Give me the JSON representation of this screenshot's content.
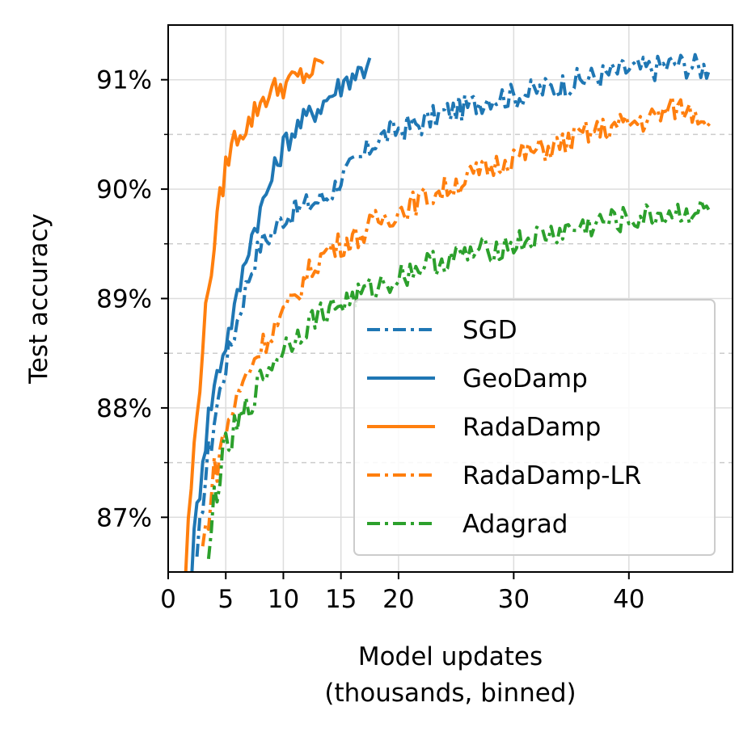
{
  "chart_data": {
    "type": "line",
    "title": "",
    "xlabel": [
      "Model updates",
      "(thousands, binned)"
    ],
    "ylabel": "Test accuracy",
    "xlim": [
      0,
      49
    ],
    "ylim": [
      86.5,
      91.5
    ],
    "xticks": [
      0,
      5,
      10,
      15,
      20,
      30,
      40
    ],
    "xtick_labels": [
      "0",
      "5",
      "10",
      "15",
      "20",
      "30",
      "40"
    ],
    "yticks": [
      87,
      88,
      89,
      90,
      91
    ],
    "ytick_labels": [
      "87%",
      "88%",
      "89%",
      "90%",
      "91%"
    ],
    "ygrid_minor_dashed": [
      87.5,
      88.5,
      89.5,
      90.5
    ],
    "grid": true,
    "legend": "lower-right",
    "series": [
      {
        "name": "SGD",
        "color": "#1f77b4",
        "style": "dashdot",
        "points": [
          [
            2.5,
            86.5
          ],
          [
            3,
            87.2
          ],
          [
            4,
            87.9
          ],
          [
            5,
            88.4
          ],
          [
            6,
            88.8
          ],
          [
            7,
            89.2
          ],
          [
            8,
            89.5
          ],
          [
            9,
            89.6
          ],
          [
            10,
            89.75
          ],
          [
            11,
            89.8
          ],
          [
            12,
            89.85
          ],
          [
            13,
            89.9
          ],
          [
            14,
            89.95
          ],
          [
            15,
            90.1
          ],
          [
            16,
            90.2
          ],
          [
            17,
            90.3
          ],
          [
            18,
            90.45
          ],
          [
            19,
            90.5
          ],
          [
            20,
            90.55
          ],
          [
            22,
            90.6
          ],
          [
            24,
            90.7
          ],
          [
            26,
            90.75
          ],
          [
            28,
            90.85
          ],
          [
            30,
            90.85
          ],
          [
            32,
            90.9
          ],
          [
            34,
            90.95
          ],
          [
            36,
            91.0
          ],
          [
            38,
            91.05
          ],
          [
            40,
            91.1
          ],
          [
            42,
            91.1
          ],
          [
            44,
            91.15
          ],
          [
            46,
            91.12
          ],
          [
            47,
            91.1
          ]
        ]
      },
      {
        "name": "GeoDamp",
        "color": "#1f77b4",
        "style": "solid",
        "points": [
          [
            2,
            86.5
          ],
          [
            3,
            87.6
          ],
          [
            4,
            88.2
          ],
          [
            5,
            88.6
          ],
          [
            6,
            89.0
          ],
          [
            7,
            89.5
          ],
          [
            8,
            89.8
          ],
          [
            9,
            90.1
          ],
          [
            10,
            90.4
          ],
          [
            11,
            90.55
          ],
          [
            12,
            90.65
          ],
          [
            13,
            90.75
          ],
          [
            14,
            90.85
          ],
          [
            15,
            90.95
          ],
          [
            16,
            91.05
          ],
          [
            17,
            91.1
          ],
          [
            17.5,
            91.2
          ]
        ]
      },
      {
        "name": "RadaDamp",
        "color": "#ff7f0e",
        "style": "solid",
        "points": [
          [
            1.5,
            86.5
          ],
          [
            2,
            87.3
          ],
          [
            2.5,
            87.9
          ],
          [
            3,
            88.6
          ],
          [
            3.5,
            89.1
          ],
          [
            4,
            89.5
          ],
          [
            4.5,
            89.9
          ],
          [
            5,
            90.2
          ],
          [
            5.5,
            90.4
          ],
          [
            6,
            90.5
          ],
          [
            7,
            90.6
          ],
          [
            8,
            90.8
          ],
          [
            9,
            90.9
          ],
          [
            10,
            90.95
          ],
          [
            11,
            91.0
          ],
          [
            12,
            91.05
          ],
          [
            13,
            91.1
          ],
          [
            13.5,
            91.15
          ]
        ]
      },
      {
        "name": "RadaDamp-LR",
        "color": "#ff7f0e",
        "style": "dashdot",
        "points": [
          [
            3,
            86.7
          ],
          [
            4,
            87.4
          ],
          [
            5,
            87.8
          ],
          [
            6,
            88.1
          ],
          [
            7,
            88.35
          ],
          [
            8,
            88.55
          ],
          [
            9,
            88.7
          ],
          [
            10,
            88.85
          ],
          [
            11,
            89.0
          ],
          [
            12,
            89.2
          ],
          [
            13,
            89.35
          ],
          [
            14,
            89.45
          ],
          [
            15,
            89.5
          ],
          [
            16,
            89.55
          ],
          [
            17,
            89.6
          ],
          [
            18,
            89.7
          ],
          [
            19,
            89.75
          ],
          [
            20,
            89.8
          ],
          [
            22,
            89.9
          ],
          [
            24,
            90.0
          ],
          [
            26,
            90.1
          ],
          [
            28,
            90.2
          ],
          [
            30,
            90.3
          ],
          [
            32,
            90.35
          ],
          [
            34,
            90.4
          ],
          [
            36,
            90.5
          ],
          [
            38,
            90.55
          ],
          [
            40,
            90.6
          ],
          [
            42,
            90.65
          ],
          [
            44,
            90.75
          ],
          [
            46,
            90.7
          ],
          [
            47,
            90.6
          ]
        ]
      },
      {
        "name": "Adagrad",
        "color": "#2ca02c",
        "style": "dashdot",
        "points": [
          [
            3.5,
            86.5
          ],
          [
            4,
            87.2
          ],
          [
            5,
            87.6
          ],
          [
            6,
            87.8
          ],
          [
            7,
            88.0
          ],
          [
            8,
            88.25
          ],
          [
            9,
            88.4
          ],
          [
            10,
            88.55
          ],
          [
            11,
            88.65
          ],
          [
            12,
            88.75
          ],
          [
            13,
            88.85
          ],
          [
            14,
            88.9
          ],
          [
            15,
            88.95
          ],
          [
            16,
            89.0
          ],
          [
            17,
            89.05
          ],
          [
            18,
            89.1
          ],
          [
            19,
            89.15
          ],
          [
            20,
            89.2
          ],
          [
            22,
            89.3
          ],
          [
            24,
            89.35
          ],
          [
            26,
            89.4
          ],
          [
            28,
            89.45
          ],
          [
            30,
            89.5
          ],
          [
            32,
            89.55
          ],
          [
            34,
            89.6
          ],
          [
            36,
            89.65
          ],
          [
            38,
            89.7
          ],
          [
            40,
            89.72
          ],
          [
            42,
            89.75
          ],
          [
            44,
            89.78
          ],
          [
            46,
            89.8
          ],
          [
            47,
            89.8
          ]
        ]
      }
    ]
  }
}
